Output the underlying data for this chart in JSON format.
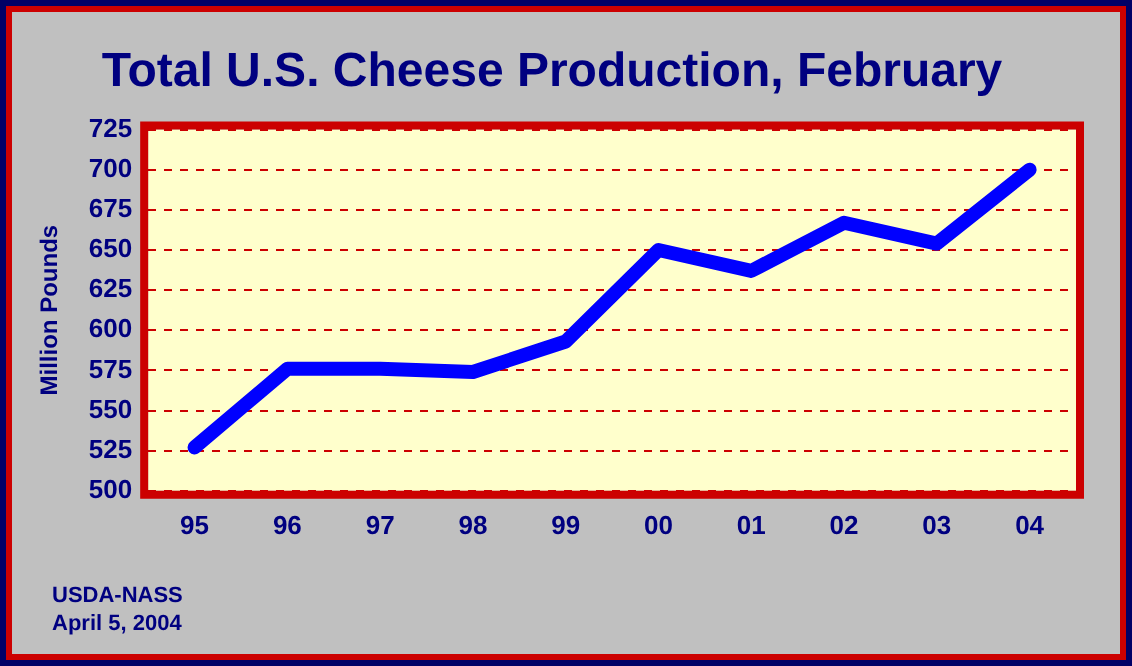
{
  "chart_data": {
    "type": "line",
    "title": "Total U.S. Cheese Production, February",
    "ylabel": "Million Pounds",
    "categories": [
      "95",
      "96",
      "97",
      "98",
      "99",
      "00",
      "01",
      "02",
      "03",
      "04"
    ],
    "series": [
      {
        "color": "#0000ff",
        "values": [
          527,
          576,
          576,
          574,
          593,
          650,
          637,
          667,
          654,
          700
        ]
      }
    ],
    "ylim": [
      500,
      725
    ],
    "yticks": [
      500,
      525,
      550,
      575,
      600,
      625,
      650,
      675,
      700,
      725
    ],
    "grid": "y",
    "legend": false,
    "marker": "none",
    "line_style": "solid",
    "annotations": [
      "USDA-NASS",
      "April 5, 2004"
    ]
  }
}
